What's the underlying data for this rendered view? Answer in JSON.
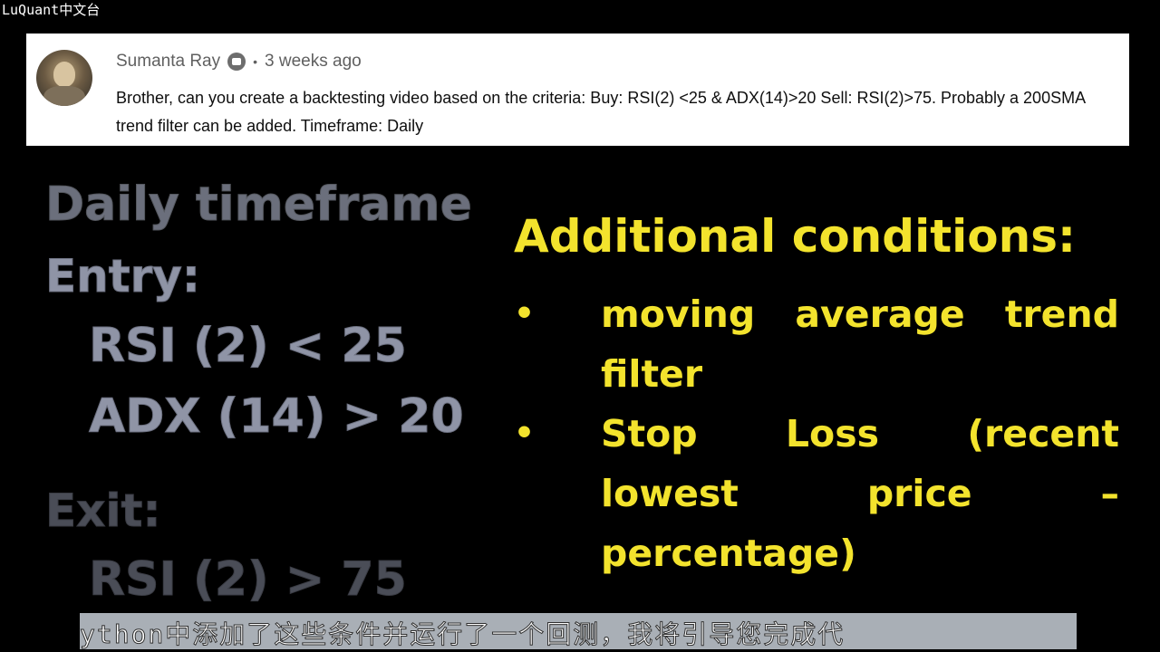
{
  "watermark": "LuQuant中文台",
  "comment": {
    "author": "Sumanta Ray",
    "separator": "•",
    "time_ago": "3 weeks ago",
    "text": "Brother, can you create a backtesting video based on the criteria: Buy: RSI(2) <25 & ADX(14)>20 Sell: RSI(2)>75. Probably a 200SMA trend filter can be added. Timeframe: Daily"
  },
  "left_panel": {
    "timeframe": "Daily timeframe",
    "entry_label": "Entry:",
    "entry_rsi": "RSI (2) < 25",
    "entry_adx": "ADX (14) > 20",
    "exit_label": "Exit:",
    "exit_rsi": "RSI (2) > 75"
  },
  "right_panel": {
    "heading": "Additional conditions:",
    "bullets": [
      {
        "marker": "•",
        "text": "moving average trend filter"
      },
      {
        "marker": "•",
        "text": "Stop Loss (recent lowest price – percentage)"
      }
    ]
  },
  "subtitle": "ython中添加了这些条件并运行了一个回测，我将引导您完成代"
}
